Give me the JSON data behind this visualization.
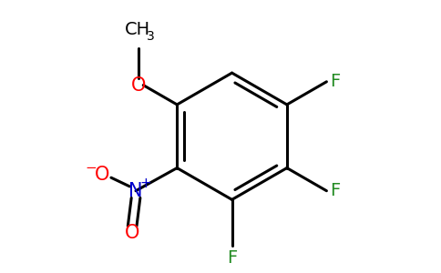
{
  "background_color": "#ffffff",
  "bond_color": "#000000",
  "bond_width": 2.2,
  "figsize": [
    4.84,
    3.0
  ],
  "dpi": 100,
  "atom_colors": {
    "C": "#000000",
    "O": "#ff0000",
    "N": "#0000cd",
    "F": "#228b22"
  },
  "font_size": 14,
  "sub_font_size": 10
}
